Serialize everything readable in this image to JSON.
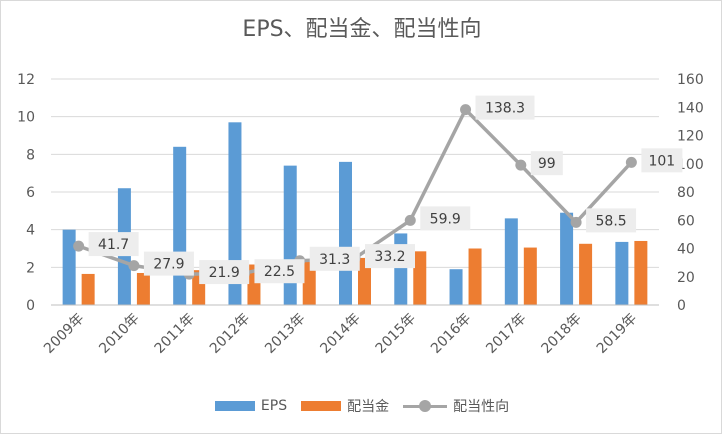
{
  "chart_data": {
    "type": "bar+line",
    "title": "EPS、配当金、配当性向",
    "categories": [
      "2009年",
      "2010年",
      "2011年",
      "2012年",
      "2013年",
      "2014年",
      "2015年",
      "2016年",
      "2017年",
      "2018年",
      "2019年"
    ],
    "series": [
      {
        "name": "EPS",
        "type": "bar",
        "axis": "left",
        "color": "#5b9bd5",
        "values": [
          4.0,
          6.2,
          8.4,
          9.7,
          7.4,
          7.6,
          3.8,
          1.9,
          4.6,
          4.9,
          3.35
        ]
      },
      {
        "name": "配当金",
        "type": "bar",
        "axis": "left",
        "color": "#ed7d31",
        "values": [
          1.65,
          1.7,
          1.85,
          2.15,
          2.3,
          2.5,
          2.85,
          3.0,
          3.05,
          3.25,
          3.4
        ]
      },
      {
        "name": "配当性向",
        "type": "line",
        "axis": "right",
        "color": "#a5a5a5",
        "values": [
          41.7,
          27.9,
          21.9,
          22.5,
          31.3,
          33.2,
          59.9,
          138.3,
          99,
          58.5,
          101
        ],
        "labels": [
          "41.7",
          "27.9",
          "21.9",
          "22.5",
          "31.3",
          "33.2",
          "59.9",
          "138.3",
          "99",
          "58.5",
          "101"
        ]
      }
    ],
    "y_left": {
      "min": 0,
      "max": 12,
      "ticks": [
        "0",
        "2",
        "4",
        "6",
        "8",
        "10",
        "12"
      ]
    },
    "y_right": {
      "min": 0,
      "max": 160,
      "ticks": [
        "0",
        "20",
        "40",
        "60",
        "80",
        "100",
        "120",
        "140",
        "160"
      ]
    },
    "grid": true,
    "legend_position": "bottom"
  }
}
